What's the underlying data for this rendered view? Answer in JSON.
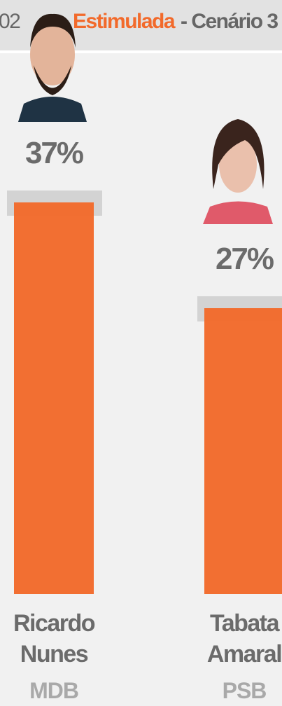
{
  "header": {
    "prefix": "02",
    "highlight": "Estimulada",
    "rest": "- Cenário 3"
  },
  "chart_data": {
    "type": "bar",
    "categories": [
      "Ricardo Nunes",
      "Tabata Amaral"
    ],
    "parties": [
      "MDB",
      "PSB"
    ],
    "values": [
      37,
      27
    ],
    "value_labels": [
      "37%",
      "27%"
    ],
    "color": "#f26a2b"
  }
}
